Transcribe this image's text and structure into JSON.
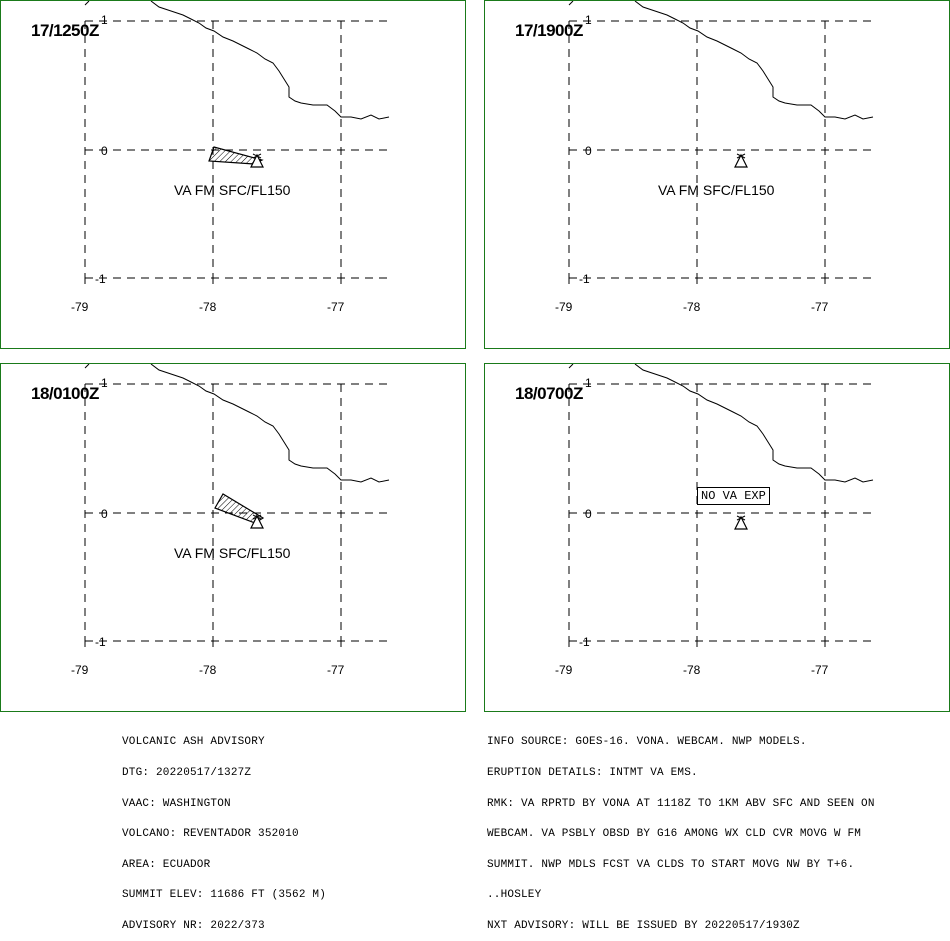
{
  "panels": [
    {
      "time": "17/1250Z",
      "ash_label": "VA FM SFC/FL150",
      "no_va_label": "",
      "x_ticks": [
        "-79",
        "-78",
        "-77"
      ],
      "y_ticks": [
        "1",
        "0",
        "-1"
      ]
    },
    {
      "time": "17/1900Z",
      "ash_label": "VA FM SFC/FL150",
      "no_va_label": "",
      "x_ticks": [
        "-79",
        "-78",
        "-77"
      ],
      "y_ticks": [
        "1",
        "0",
        "-1"
      ]
    },
    {
      "time": "18/0100Z",
      "ash_label": "VA FM SFC/FL150",
      "no_va_label": "",
      "x_ticks": [
        "-79",
        "-78",
        "-77"
      ],
      "y_ticks": [
        "1",
        "0",
        "-1"
      ]
    },
    {
      "time": "18/0700Z",
      "ash_label": "",
      "no_va_label": "NO VA EXP",
      "x_ticks": [
        "-79",
        "-78",
        "-77"
      ],
      "y_ticks": [
        "1",
        "0",
        "-1"
      ]
    }
  ],
  "advisory_left": [
    "VOLCANIC ASH ADVISORY",
    "DTG: 20220517/1327Z",
    "VAAC: WASHINGTON",
    "VOLCANO: REVENTADOR 352010",
    "AREA: ECUADOR",
    "SUMMIT ELEV: 11686 FT (3562 M)",
    "ADVISORY NR: 2022/373"
  ],
  "advisory_right": [
    "INFO SOURCE: GOES-16. VONA. WEBCAM. NWP MODELS.",
    "ERUPTION DETAILS: INTMT VA EMS.",
    "RMK: VA RPRTD BY VONA AT 1118Z TO 1KM ABV SFC AND SEEN ON",
    "WEBCAM. VA PSBLY OBSD BY G16 AMONG WX CLD CVR MOVG W FM",
    "SUMMIT. NWP MDLS FCST VA CLDS TO START MOVG NW BY T+6.",
    "..HOSLEY",
    "NXT ADVISORY: WILL BE ISSUED BY 20220517/1930Z"
  ],
  "colors": {
    "panel_border": "#1a7a1a",
    "line": "#000000",
    "background": "#ffffff"
  },
  "icons": {
    "volcano": "volcano-triangle-icon",
    "ash_polygon": "hatched-polygon-icon"
  }
}
